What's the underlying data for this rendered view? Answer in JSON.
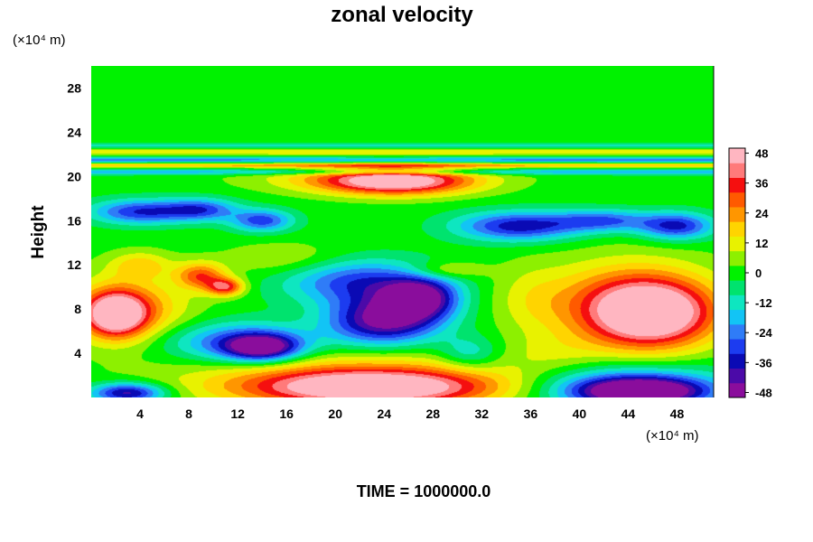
{
  "chart_data": {
    "type": "heatmap",
    "title": "zonal velocity",
    "ylabel": "Height",
    "x_unit": "(×10⁴ m)",
    "y_unit": "(×10⁴ m)",
    "footer": "TIME = 1000000.0",
    "xlim": [
      0,
      51
    ],
    "ylim": [
      0,
      30
    ],
    "xticks": [
      4,
      8,
      12,
      16,
      20,
      24,
      28,
      32,
      36,
      40,
      44,
      48
    ],
    "yticks": [
      4,
      8,
      12,
      16,
      20,
      24,
      28
    ],
    "colorbar": {
      "range": [
        -50,
        50
      ],
      "ticks": [
        48,
        36,
        24,
        12,
        0,
        -12,
        -24,
        -36,
        -48
      ],
      "colors": [
        "#8a0d9c",
        "#4b0aa8",
        "#0a0ab4",
        "#1c3cf0",
        "#2f7cf7",
        "#12c4f5",
        "#0ee6c0",
        "#00e36e",
        "#00f200",
        "#8df000",
        "#e8f200",
        "#ffd400",
        "#ff9600",
        "#ff5a00",
        "#f50f0f",
        "#ff7a7a",
        "#ffb6c1"
      ]
    },
    "features": [
      {
        "x": 24,
        "y": 7,
        "rx": 4.5,
        "ry": 2.2,
        "v": -48
      },
      {
        "x": 27,
        "y": 9,
        "rx": 3,
        "ry": 1.8,
        "v": -44
      },
      {
        "x": 22,
        "y": 10.5,
        "rx": 6,
        "ry": 2,
        "v": -30
      },
      {
        "x": 14,
        "y": 4.5,
        "rx": 3,
        "ry": 1.2,
        "v": -44
      },
      {
        "x": 12,
        "y": 5,
        "rx": 6,
        "ry": 1.8,
        "v": -28
      },
      {
        "x": 2,
        "y": 7.5,
        "rx": 2.5,
        "ry": 2,
        "v": 48
      },
      {
        "x": 3,
        "y": 8,
        "rx": 5,
        "ry": 3,
        "v": 24
      },
      {
        "x": 46,
        "y": 7.5,
        "rx": 5,
        "ry": 3,
        "v": 46
      },
      {
        "x": 44,
        "y": 8.5,
        "rx": 7,
        "ry": 3.8,
        "v": 28
      },
      {
        "x": 23,
        "y": 0.8,
        "rx": 10,
        "ry": 1.6,
        "v": 46
      },
      {
        "x": 22,
        "y": 1.8,
        "rx": 14,
        "ry": 2.4,
        "v": 22
      },
      {
        "x": 45,
        "y": 0.5,
        "rx": 5,
        "ry": 1.2,
        "v": -48
      },
      {
        "x": 44,
        "y": 1,
        "rx": 8,
        "ry": 2,
        "v": -30
      },
      {
        "x": 3,
        "y": 0.4,
        "rx": 3,
        "ry": 0.9,
        "v": -42
      },
      {
        "x": 25,
        "y": 19.5,
        "rx": 6,
        "ry": 1.2,
        "v": 42
      },
      {
        "x": 23,
        "y": 19.8,
        "rx": 9,
        "ry": 1.2,
        "v": 18
      },
      {
        "x": 4,
        "y": 16.8,
        "rx": 4,
        "ry": 1.1,
        "v": -32
      },
      {
        "x": 9,
        "y": 17,
        "rx": 3,
        "ry": 1,
        "v": -28
      },
      {
        "x": 14,
        "y": 16,
        "rx": 2.5,
        "ry": 1,
        "v": -30
      },
      {
        "x": 35,
        "y": 15.5,
        "rx": 5,
        "ry": 1.3,
        "v": -36
      },
      {
        "x": 48,
        "y": 15.5,
        "rx": 3,
        "ry": 1.2,
        "v": -34
      },
      {
        "x": 42,
        "y": 16,
        "rx": 4,
        "ry": 1,
        "v": -26
      },
      {
        "x": 9,
        "y": 11,
        "rx": 2,
        "ry": 1.2,
        "v": 30
      },
      {
        "x": 11,
        "y": 10,
        "rx": 1.5,
        "ry": 0.8,
        "v": 36
      },
      {
        "x": 4,
        "y": 12,
        "rx": 2.5,
        "ry": 1.2,
        "v": 16
      },
      {
        "x": 29,
        "y": 11.5,
        "rx": 3,
        "ry": 0.8,
        "v": 14
      },
      {
        "x": 16,
        "y": 12.5,
        "rx": 5,
        "ry": 1.5,
        "v": 10
      },
      {
        "x": 36,
        "y": 9,
        "rx": 3,
        "ry": 3,
        "v": 8
      },
      {
        "x": 38,
        "y": 4,
        "rx": 4,
        "ry": 2,
        "v": 6
      },
      {
        "x": 31,
        "y": 4,
        "rx": 2.5,
        "ry": 1.5,
        "v": -16
      }
    ],
    "bands": [
      {
        "y": 21.5,
        "half_width": 0.25,
        "v": -22
      },
      {
        "y": 21,
        "half_width": 0.2,
        "v": 20
      },
      {
        "y": 20.4,
        "half_width": 0.25,
        "v": -18
      },
      {
        "y": 22.2,
        "half_width": 0.25,
        "v": 14
      },
      {
        "y": 22.8,
        "half_width": 0.25,
        "v": -10
      }
    ]
  }
}
